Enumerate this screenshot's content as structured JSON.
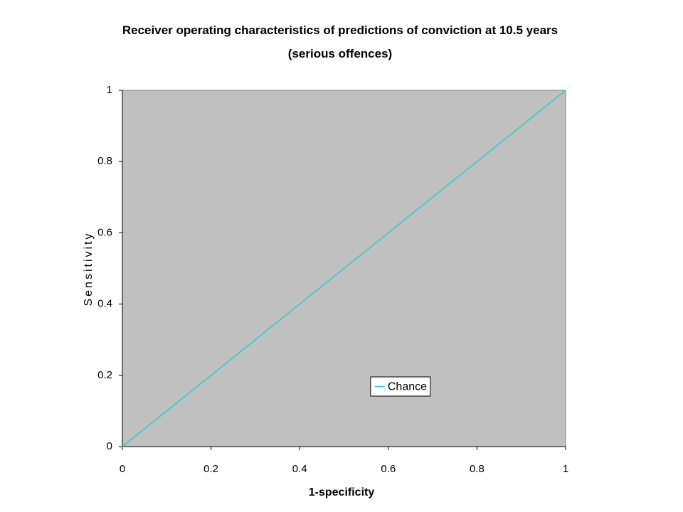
{
  "chart_data": {
    "type": "line",
    "title": "Receiver operating characteristics of predictions of conviction at 10.5 years (serious offences)",
    "x_label": "1-specificity",
    "y_label": "Sensitivity",
    "x": [
      0,
      1
    ],
    "series": [
      {
        "name": "Chance",
        "color": "#33cccc",
        "values": [
          0,
          1
        ]
      }
    ],
    "xlim": [
      0,
      1
    ],
    "xticks": [
      0,
      0.2,
      0.4,
      0.6,
      0.8,
      1
    ],
    "ylim": [
      0,
      1
    ],
    "yticks": [
      0,
      0.2,
      0.4,
      0.6,
      0.8,
      1
    ],
    "grid": false,
    "legend": "lower right",
    "plot_background": "#c0c0c0"
  }
}
